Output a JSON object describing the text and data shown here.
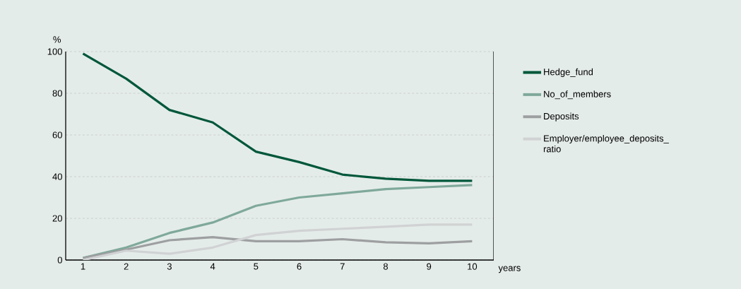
{
  "chart_data": {
    "type": "line",
    "xlabel": "years",
    "ylabel": "%",
    "x": [
      1,
      2,
      3,
      4,
      5,
      6,
      7,
      8,
      9,
      10
    ],
    "xlim": [
      0.6,
      10.5
    ],
    "ylim": [
      0,
      100
    ],
    "xticks": [
      1,
      2,
      3,
      4,
      5,
      6,
      7,
      8,
      9,
      10
    ],
    "yticks": [
      0,
      20,
      40,
      60,
      80,
      100
    ],
    "grid": "y",
    "legend": "right",
    "marker": "none",
    "line_style": "solid",
    "series": [
      {
        "name": "Hedge_fund",
        "color": "#00573a",
        "values": [
          99,
          87,
          72,
          66,
          52,
          47,
          41,
          39,
          38,
          38
        ]
      },
      {
        "name": "No_of_members",
        "color": "#7fa99a",
        "values": [
          1,
          6,
          13,
          18,
          26,
          30,
          32,
          34,
          35,
          36
        ]
      },
      {
        "name": "Deposits",
        "color": "#9d9fa0",
        "values": [
          1,
          5,
          9.5,
          11,
          9,
          9,
          10,
          8.5,
          8,
          9
        ]
      },
      {
        "name": "Employer/employee_deposits_ ratio",
        "color": "#d0d2d3",
        "values": [
          0,
          4.5,
          3,
          6,
          12,
          14,
          15,
          16,
          17,
          17
        ]
      }
    ]
  }
}
